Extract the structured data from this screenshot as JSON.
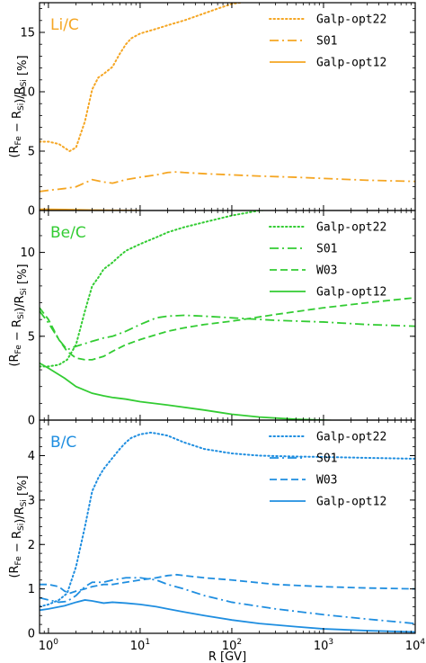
{
  "figure": {
    "xlabel": "R [GV]"
  },
  "chart_data": [
    {
      "type": "line",
      "panel_label": "Li/C",
      "color": "#f5a623",
      "ylabel_main": "(R",
      "ylabel_sub1": "Fe",
      "ylabel_mid": " − R",
      "ylabel_sub2": "Si",
      "ylabel_mid2": ")/R",
      "ylabel_sub3": "Si",
      "ylabel_unit": " [%]",
      "xscale": "log",
      "xlim": [
        0.8,
        10000
      ],
      "ylim": [
        0,
        17.5
      ],
      "yticks": [
        0,
        5,
        10,
        15
      ],
      "legend": "top-right",
      "series": [
        {
          "name": "Galp-opt22",
          "style": "dotted",
          "x": [
            0.8,
            1,
            1.3,
            1.7,
            2,
            2.5,
            3,
            3.5,
            4,
            5,
            6,
            7,
            8,
            10,
            15,
            20,
            30,
            50,
            70,
            100,
            150,
            200,
            500,
            1000,
            3000,
            10000
          ],
          "y": [
            5.8,
            5.8,
            5.6,
            5.0,
            5.3,
            7.5,
            10.2,
            11.2,
            11.5,
            12.1,
            13.2,
            14.0,
            14.5,
            14.9,
            15.3,
            15.6,
            16.0,
            16.6,
            17.0,
            17.4,
            17.6,
            17.7,
            18.0,
            18.2,
            18.5,
            18.8
          ]
        },
        {
          "name": "S01",
          "style": "dashdot",
          "x": [
            0.8,
            1,
            1.5,
            2,
            3,
            4,
            5,
            7,
            10,
            15,
            20,
            25,
            30,
            50,
            100,
            200,
            500,
            1000,
            3000,
            10000
          ],
          "y": [
            1.6,
            1.7,
            1.85,
            2.0,
            2.6,
            2.4,
            2.3,
            2.6,
            2.8,
            3.0,
            3.2,
            3.25,
            3.2,
            3.1,
            3.0,
            2.9,
            2.8,
            2.7,
            2.55,
            2.45
          ]
        },
        {
          "name": "Galp-opt12",
          "style": "solid",
          "x": [
            0.8,
            1,
            1.5,
            2,
            3,
            5,
            7,
            10
          ],
          "y": [
            0.1,
            0.1,
            0.08,
            0.06,
            0.04,
            0.02,
            0.01,
            0.0
          ]
        }
      ]
    },
    {
      "type": "line",
      "panel_label": "Be/C",
      "color": "#33cc33",
      "ylabel_main": "(R",
      "ylabel_sub1": "Fe",
      "ylabel_mid": " − R",
      "ylabel_sub2": "Si",
      "ylabel_mid2": ")/R",
      "ylabel_sub3": "Si",
      "ylabel_unit": " [%]",
      "xscale": "log",
      "xlim": [
        0.8,
        10000
      ],
      "ylim": [
        0,
        12.5
      ],
      "yticks": [
        0,
        5,
        10
      ],
      "legend": "top-right",
      "series": [
        {
          "name": "Galp-opt22",
          "style": "dotted",
          "x": [
            0.8,
            1,
            1.3,
            1.6,
            2,
            2.5,
            3,
            3.5,
            4,
            5,
            6,
            7,
            10,
            15,
            20,
            30,
            50,
            100,
            200,
            300,
            500,
            1000,
            3000,
            10000
          ],
          "y": [
            3.2,
            3.2,
            3.3,
            3.6,
            4.5,
            6.5,
            8.0,
            8.5,
            9.0,
            9.4,
            9.8,
            10.1,
            10.5,
            10.9,
            11.2,
            11.5,
            11.8,
            12.2,
            12.5,
            12.6,
            12.8,
            13.0,
            13.2,
            13.4
          ]
        },
        {
          "name": "S01",
          "style": "dashdot",
          "x": [
            0.8,
            1,
            1.3,
            1.6,
            2,
            3,
            4,
            5,
            7,
            10,
            15,
            20,
            30,
            50,
            100,
            300,
            1000,
            3000,
            10000
          ],
          "y": [
            6.5,
            5.8,
            4.8,
            4.2,
            4.4,
            4.7,
            4.9,
            5.0,
            5.3,
            5.7,
            6.1,
            6.2,
            6.25,
            6.2,
            6.1,
            5.95,
            5.85,
            5.7,
            5.6
          ]
        },
        {
          "name": "W03",
          "style": "dashed",
          "x": [
            0.8,
            1,
            1.3,
            1.6,
            2,
            2.5,
            3,
            4,
            5,
            7,
            10,
            15,
            20,
            30,
            50,
            100,
            300,
            1000,
            3000,
            10000
          ],
          "y": [
            6.7,
            6.0,
            4.8,
            4.1,
            3.7,
            3.6,
            3.6,
            3.8,
            4.1,
            4.5,
            4.8,
            5.1,
            5.3,
            5.5,
            5.7,
            5.9,
            6.3,
            6.7,
            7.0,
            7.3
          ]
        },
        {
          "name": "Galp-opt12",
          "style": "solid",
          "x": [
            0.8,
            1,
            1.5,
            2,
            3,
            4,
            5,
            7,
            10,
            20,
            50,
            100,
            200,
            500,
            1000,
            3000,
            10000
          ],
          "y": [
            3.4,
            3.1,
            2.5,
            2.0,
            1.6,
            1.45,
            1.35,
            1.25,
            1.1,
            0.9,
            0.6,
            0.35,
            0.18,
            0.05,
            0.0,
            -0.1,
            -0.2
          ]
        }
      ]
    },
    {
      "type": "line",
      "panel_label": "B/C",
      "color": "#1f8ee0",
      "ylabel_main": "(R",
      "ylabel_sub1": "Fe",
      "ylabel_mid": " − R",
      "ylabel_sub2": "Si",
      "ylabel_mid2": ")/R",
      "ylabel_sub3": "Si",
      "ylabel_unit": " [%]",
      "xscale": "log",
      "xlim": [
        0.8,
        10000
      ],
      "ylim": [
        0,
        4.8
      ],
      "yticks": [
        0,
        1,
        2,
        3,
        4
      ],
      "xticks": [
        1,
        10,
        100,
        1000,
        10000
      ],
      "legend": "top-right",
      "series": [
        {
          "name": "Galp-opt22",
          "style": "dotted",
          "x": [
            0.8,
            1,
            1.3,
            1.6,
            2,
            2.5,
            3,
            3.5,
            4,
            5,
            6,
            7,
            8,
            10,
            13,
            15,
            20,
            30,
            50,
            100,
            200,
            500,
            1000,
            3000,
            10000
          ],
          "y": [
            0.6,
            0.65,
            0.75,
            0.9,
            1.5,
            2.4,
            3.2,
            3.5,
            3.7,
            3.95,
            4.15,
            4.3,
            4.4,
            4.48,
            4.52,
            4.5,
            4.45,
            4.3,
            4.15,
            4.05,
            4.0,
            3.98,
            3.97,
            3.95,
            3.93
          ]
        },
        {
          "name": "S01",
          "style": "dashdot",
          "x": [
            0.8,
            1,
            1.3,
            1.6,
            2,
            2.5,
            3,
            4,
            5,
            7,
            10,
            15,
            20,
            30,
            50,
            100,
            300,
            1000,
            3000,
            10000
          ],
          "y": [
            0.8,
            0.75,
            0.7,
            0.72,
            0.85,
            1.05,
            1.15,
            1.15,
            1.2,
            1.25,
            1.25,
            1.2,
            1.1,
            1.0,
            0.85,
            0.7,
            0.55,
            0.42,
            0.32,
            0.22
          ]
        },
        {
          "name": "W03",
          "style": "dashed",
          "x": [
            0.8,
            1,
            1.3,
            1.5,
            1.7,
            2,
            2.5,
            3,
            4,
            5,
            7,
            10,
            15,
            20,
            25,
            30,
            50,
            100,
            300,
            1000,
            3000,
            10000
          ],
          "y": [
            1.1,
            1.1,
            1.05,
            0.95,
            0.9,
            0.95,
            1.0,
            1.05,
            1.1,
            1.1,
            1.15,
            1.2,
            1.25,
            1.3,
            1.32,
            1.3,
            1.25,
            1.2,
            1.1,
            1.05,
            1.02,
            1.0
          ]
        },
        {
          "name": "Galp-opt12",
          "style": "solid",
          "x": [
            0.8,
            1,
            1.5,
            2,
            2.5,
            3,
            4,
            5,
            7,
            10,
            15,
            20,
            30,
            50,
            100,
            200,
            500,
            1000,
            3000,
            10000
          ],
          "y": [
            0.52,
            0.55,
            0.62,
            0.7,
            0.75,
            0.73,
            0.68,
            0.7,
            0.68,
            0.65,
            0.6,
            0.55,
            0.48,
            0.4,
            0.3,
            0.22,
            0.15,
            0.1,
            0.06,
            0.03
          ]
        }
      ]
    }
  ]
}
